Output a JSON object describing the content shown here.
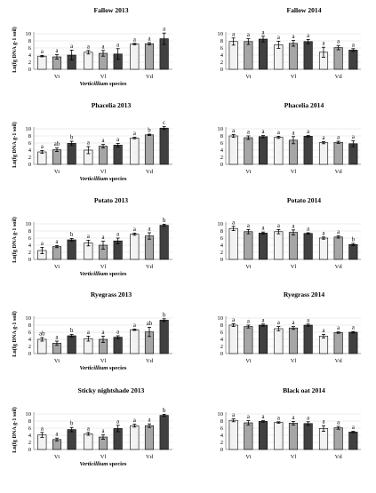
{
  "colors": {
    "series": [
      "#f2f2f2",
      "#a6a6a6",
      "#404040"
    ],
    "stroke": "#000000"
  },
  "chart_data": [
    {
      "type": "bar",
      "title": "Fallow 2013",
      "ylabel": "Ln(fg DNA g-1 soil)",
      "xlabel_italic": "Verticillium",
      "xlabel_rest": " species",
      "categories": [
        "Vi",
        "Vl",
        "Vd"
      ],
      "ylim": [
        0,
        10
      ],
      "yticks": [
        "0",
        "2",
        "4",
        "6",
        "8",
        "10"
      ],
      "series": [
        {
          "values": [
            3.7,
            4.8,
            7.1
          ],
          "errors": [
            0.2,
            0.5,
            0.2
          ]
        },
        {
          "values": [
            3.5,
            4.5,
            7.2
          ],
          "errors": [
            0.6,
            0.8,
            0.3
          ]
        },
        {
          "values": [
            4.0,
            4.3,
            8.6
          ],
          "errors": [
            1.4,
            1.5,
            1.6
          ]
        }
      ],
      "letters": [
        [
          "a",
          "a",
          "a"
        ],
        [
          "a",
          "a",
          "a"
        ],
        [
          "a",
          "a",
          "a"
        ]
      ]
    },
    {
      "type": "bar",
      "title": "Fallow 2014",
      "ylabel": "",
      "xlabel_italic": "",
      "xlabel_rest": "",
      "categories": [
        "Vi",
        "Vl",
        "Vd"
      ],
      "ylim": [
        0,
        10
      ],
      "yticks": [
        "0",
        "2",
        "4",
        "6",
        "8",
        "10"
      ],
      "series": [
        {
          "values": [
            7.8,
            6.9,
            4.8
          ],
          "errors": [
            1.0,
            1.0,
            1.4
          ]
        },
        {
          "values": [
            7.8,
            7.3,
            6.1
          ],
          "errors": [
            0.8,
            0.8,
            0.6
          ]
        },
        {
          "values": [
            8.5,
            7.8,
            5.4
          ],
          "errors": [
            0.8,
            0.6,
            0.4
          ]
        }
      ],
      "letters": [
        [
          "a",
          "a",
          "a"
        ],
        [
          "a",
          "a",
          "a"
        ],
        [
          "a",
          "a",
          "a"
        ]
      ]
    },
    {
      "type": "bar",
      "title": "Phacelia 2013",
      "ylabel": "Ln(fg DNA g-1 soil)",
      "xlabel_italic": "Verticillium",
      "xlabel_rest": " species",
      "categories": [
        "Vi",
        "Vl",
        "Vd"
      ],
      "ylim": [
        0,
        10
      ],
      "yticks": [
        "0",
        "2",
        "4",
        "6",
        "8",
        "10"
      ],
      "series": [
        {
          "values": [
            3.5,
            4.0,
            7.4
          ],
          "errors": [
            0.4,
            1.0,
            0.2
          ]
        },
        {
          "values": [
            4.1,
            5.1,
            8.3
          ],
          "errors": [
            0.5,
            0.5,
            0.2
          ]
        },
        {
          "values": [
            5.9,
            5.4,
            10.2
          ],
          "errors": [
            0.6,
            0.5,
            0.4
          ]
        }
      ],
      "letters": [
        [
          "a",
          "a",
          "a"
        ],
        [
          "ab",
          "a",
          "b"
        ],
        [
          "b",
          "a",
          "c"
        ]
      ]
    },
    {
      "type": "bar",
      "title": "Phacelia 2014",
      "ylabel": "",
      "xlabel_italic": "",
      "xlabel_rest": "",
      "categories": [
        "Vi",
        "Vl",
        "Vd"
      ],
      "ylim": [
        0,
        10
      ],
      "yticks": [
        "0",
        "2",
        "4",
        "6",
        "8",
        "10"
      ],
      "series": [
        {
          "values": [
            8.0,
            7.6,
            6.1
          ],
          "errors": [
            0.4,
            0.3,
            0.3
          ]
        },
        {
          "values": [
            7.5,
            6.8,
            6.2
          ],
          "errors": [
            0.5,
            1.0,
            0.3
          ]
        },
        {
          "values": [
            7.8,
            7.9,
            5.8
          ],
          "errors": [
            0.3,
            0.2,
            0.8
          ]
        }
      ],
      "letters": [
        [
          "a",
          "a",
          "a"
        ],
        [
          "a",
          "a",
          "a"
        ],
        [
          "a",
          "a",
          "a"
        ]
      ]
    },
    {
      "type": "bar",
      "title": "Potato 2013",
      "ylabel": "Ln(fg DNA g-1 soil)",
      "xlabel_italic": "Verticillium",
      "xlabel_rest": " species",
      "categories": [
        "Vi",
        "Vl",
        "Vd"
      ],
      "ylim": [
        0,
        10
      ],
      "yticks": [
        "0",
        "2",
        "4",
        "6",
        "8",
        "10"
      ],
      "series": [
        {
          "values": [
            2.5,
            4.6,
            7.1
          ],
          "errors": [
            0.9,
            0.8,
            0.3
          ]
        },
        {
          "values": [
            3.6,
            4.0,
            6.6
          ],
          "errors": [
            0.3,
            1.1,
            0.9
          ]
        },
        {
          "values": [
            5.5,
            5.2,
            9.6
          ],
          "errors": [
            0.4,
            0.8,
            0.3
          ]
        }
      ],
      "letters": [
        [
          "a",
          "a",
          "a"
        ],
        [
          "a",
          "a",
          "a"
        ],
        [
          "b",
          "a",
          "b"
        ]
      ]
    },
    {
      "type": "bar",
      "title": "Potato 2014",
      "ylabel": "",
      "xlabel_italic": "",
      "xlabel_rest": "",
      "categories": [
        "Vi",
        "Vl",
        "Vd"
      ],
      "ylim": [
        0,
        10
      ],
      "yticks": [
        "0",
        "2",
        "4",
        "6",
        "8",
        "10"
      ],
      "series": [
        {
          "values": [
            8.7,
            7.8,
            6.0
          ],
          "errors": [
            0.6,
            0.6,
            0.3
          ]
        },
        {
          "values": [
            7.8,
            7.6,
            6.3
          ],
          "errors": [
            0.6,
            0.7,
            0.3
          ]
        },
        {
          "values": [
            7.4,
            7.3,
            4.2
          ],
          "errors": [
            0.3,
            0.2,
            0.3
          ]
        }
      ],
      "letters": [
        [
          "a",
          "a",
          "a"
        ],
        [
          "a",
          "a",
          "a"
        ],
        [
          "a",
          "a",
          "b"
        ]
      ]
    },
    {
      "type": "bar",
      "title": "Ryegrass 2013",
      "ylabel": "Ln(fg DNA g-1 soil)",
      "xlabel_italic": "Verticillium",
      "xlabel_rest": " species",
      "categories": [
        "Vi",
        "Vl",
        "Vd"
      ],
      "ylim": [
        0,
        10
      ],
      "yticks": [
        "0",
        "2",
        "4",
        "6",
        "8",
        "10"
      ],
      "series": [
        {
          "values": [
            4.0,
            4.2,
            6.7
          ],
          "errors": [
            0.5,
            0.7,
            0.2
          ]
        },
        {
          "values": [
            2.9,
            4.0,
            6.1
          ],
          "errors": [
            0.6,
            0.9,
            1.3
          ]
        },
        {
          "values": [
            5.0,
            4.6,
            9.4
          ],
          "errors": [
            0.4,
            0.4,
            0.4
          ]
        }
      ],
      "letters": [
        [
          "ab",
          "a",
          "a"
        ],
        [
          "a",
          "a",
          "ab"
        ],
        [
          "b",
          "a",
          "b"
        ]
      ]
    },
    {
      "type": "bar",
      "title": "Ryegrass 2014",
      "ylabel": "",
      "xlabel_italic": "",
      "xlabel_rest": "",
      "categories": [
        "Vi",
        "Vl",
        "Vd"
      ],
      "ylim": [
        0,
        10
      ],
      "yticks": [
        "0",
        "2",
        "4",
        "6",
        "8",
        "10"
      ],
      "series": [
        {
          "values": [
            8.0,
            7.0,
            4.9
          ],
          "errors": [
            0.4,
            0.6,
            0.5
          ]
        },
        {
          "values": [
            7.6,
            7.2,
            5.9
          ],
          "errors": [
            0.4,
            0.4,
            0.2
          ]
        },
        {
          "values": [
            8.0,
            8.0,
            6.0
          ],
          "errors": [
            0.3,
            0.3,
            0.2
          ]
        }
      ],
      "letters": [
        [
          "a",
          "a",
          "a"
        ],
        [
          "a",
          "a",
          "a"
        ],
        [
          "a",
          "a",
          "a"
        ]
      ]
    },
    {
      "type": "bar",
      "title": "Sticky nightshade 2013",
      "ylabel": "Ln(fg DNA g-1 soil)",
      "xlabel_italic": "Verticillium",
      "xlabel_rest": " species",
      "categories": [
        "Vi",
        "Vl",
        "Vd"
      ],
      "ylim": [
        0,
        10
      ],
      "yticks": [
        "0",
        "2",
        "4",
        "6",
        "8",
        "10"
      ],
      "series": [
        {
          "values": [
            4.1,
            4.4,
            6.7
          ],
          "errors": [
            0.7,
            0.4,
            0.4
          ]
        },
        {
          "values": [
            2.8,
            3.5,
            6.7
          ],
          "errors": [
            0.4,
            0.6,
            0.5
          ]
        },
        {
          "values": [
            5.6,
            5.9,
            9.6
          ],
          "errors": [
            0.6,
            0.9,
            0.3
          ]
        }
      ],
      "letters": [
        [
          "a",
          "a",
          "a"
        ],
        [
          "a",
          "a",
          "a"
        ],
        [
          "b",
          "a",
          "b"
        ]
      ]
    },
    {
      "type": "bar",
      "title": "Black oat 2014",
      "ylabel": "",
      "xlabel_italic": "",
      "xlabel_rest": "",
      "categories": [
        "Vi",
        "Vl",
        "Vd"
      ],
      "ylim": [
        0,
        10
      ],
      "yticks": [
        "0",
        "2",
        "4",
        "6",
        "8",
        "10"
      ],
      "series": [
        {
          "values": [
            8.2,
            7.6,
            5.9
          ],
          "errors": [
            0.4,
            0.2,
            0.8
          ]
        },
        {
          "values": [
            7.5,
            7.4,
            6.1
          ],
          "errors": [
            0.6,
            0.5,
            0.4
          ]
        },
        {
          "values": [
            7.9,
            7.3,
            4.9
          ],
          "errors": [
            0.2,
            0.5,
            0.2
          ]
        }
      ],
      "letters": [
        [
          "a",
          "a",
          "a"
        ],
        [
          "a",
          "a",
          "a"
        ],
        [
          "a",
          "a",
          "a"
        ]
      ]
    }
  ]
}
